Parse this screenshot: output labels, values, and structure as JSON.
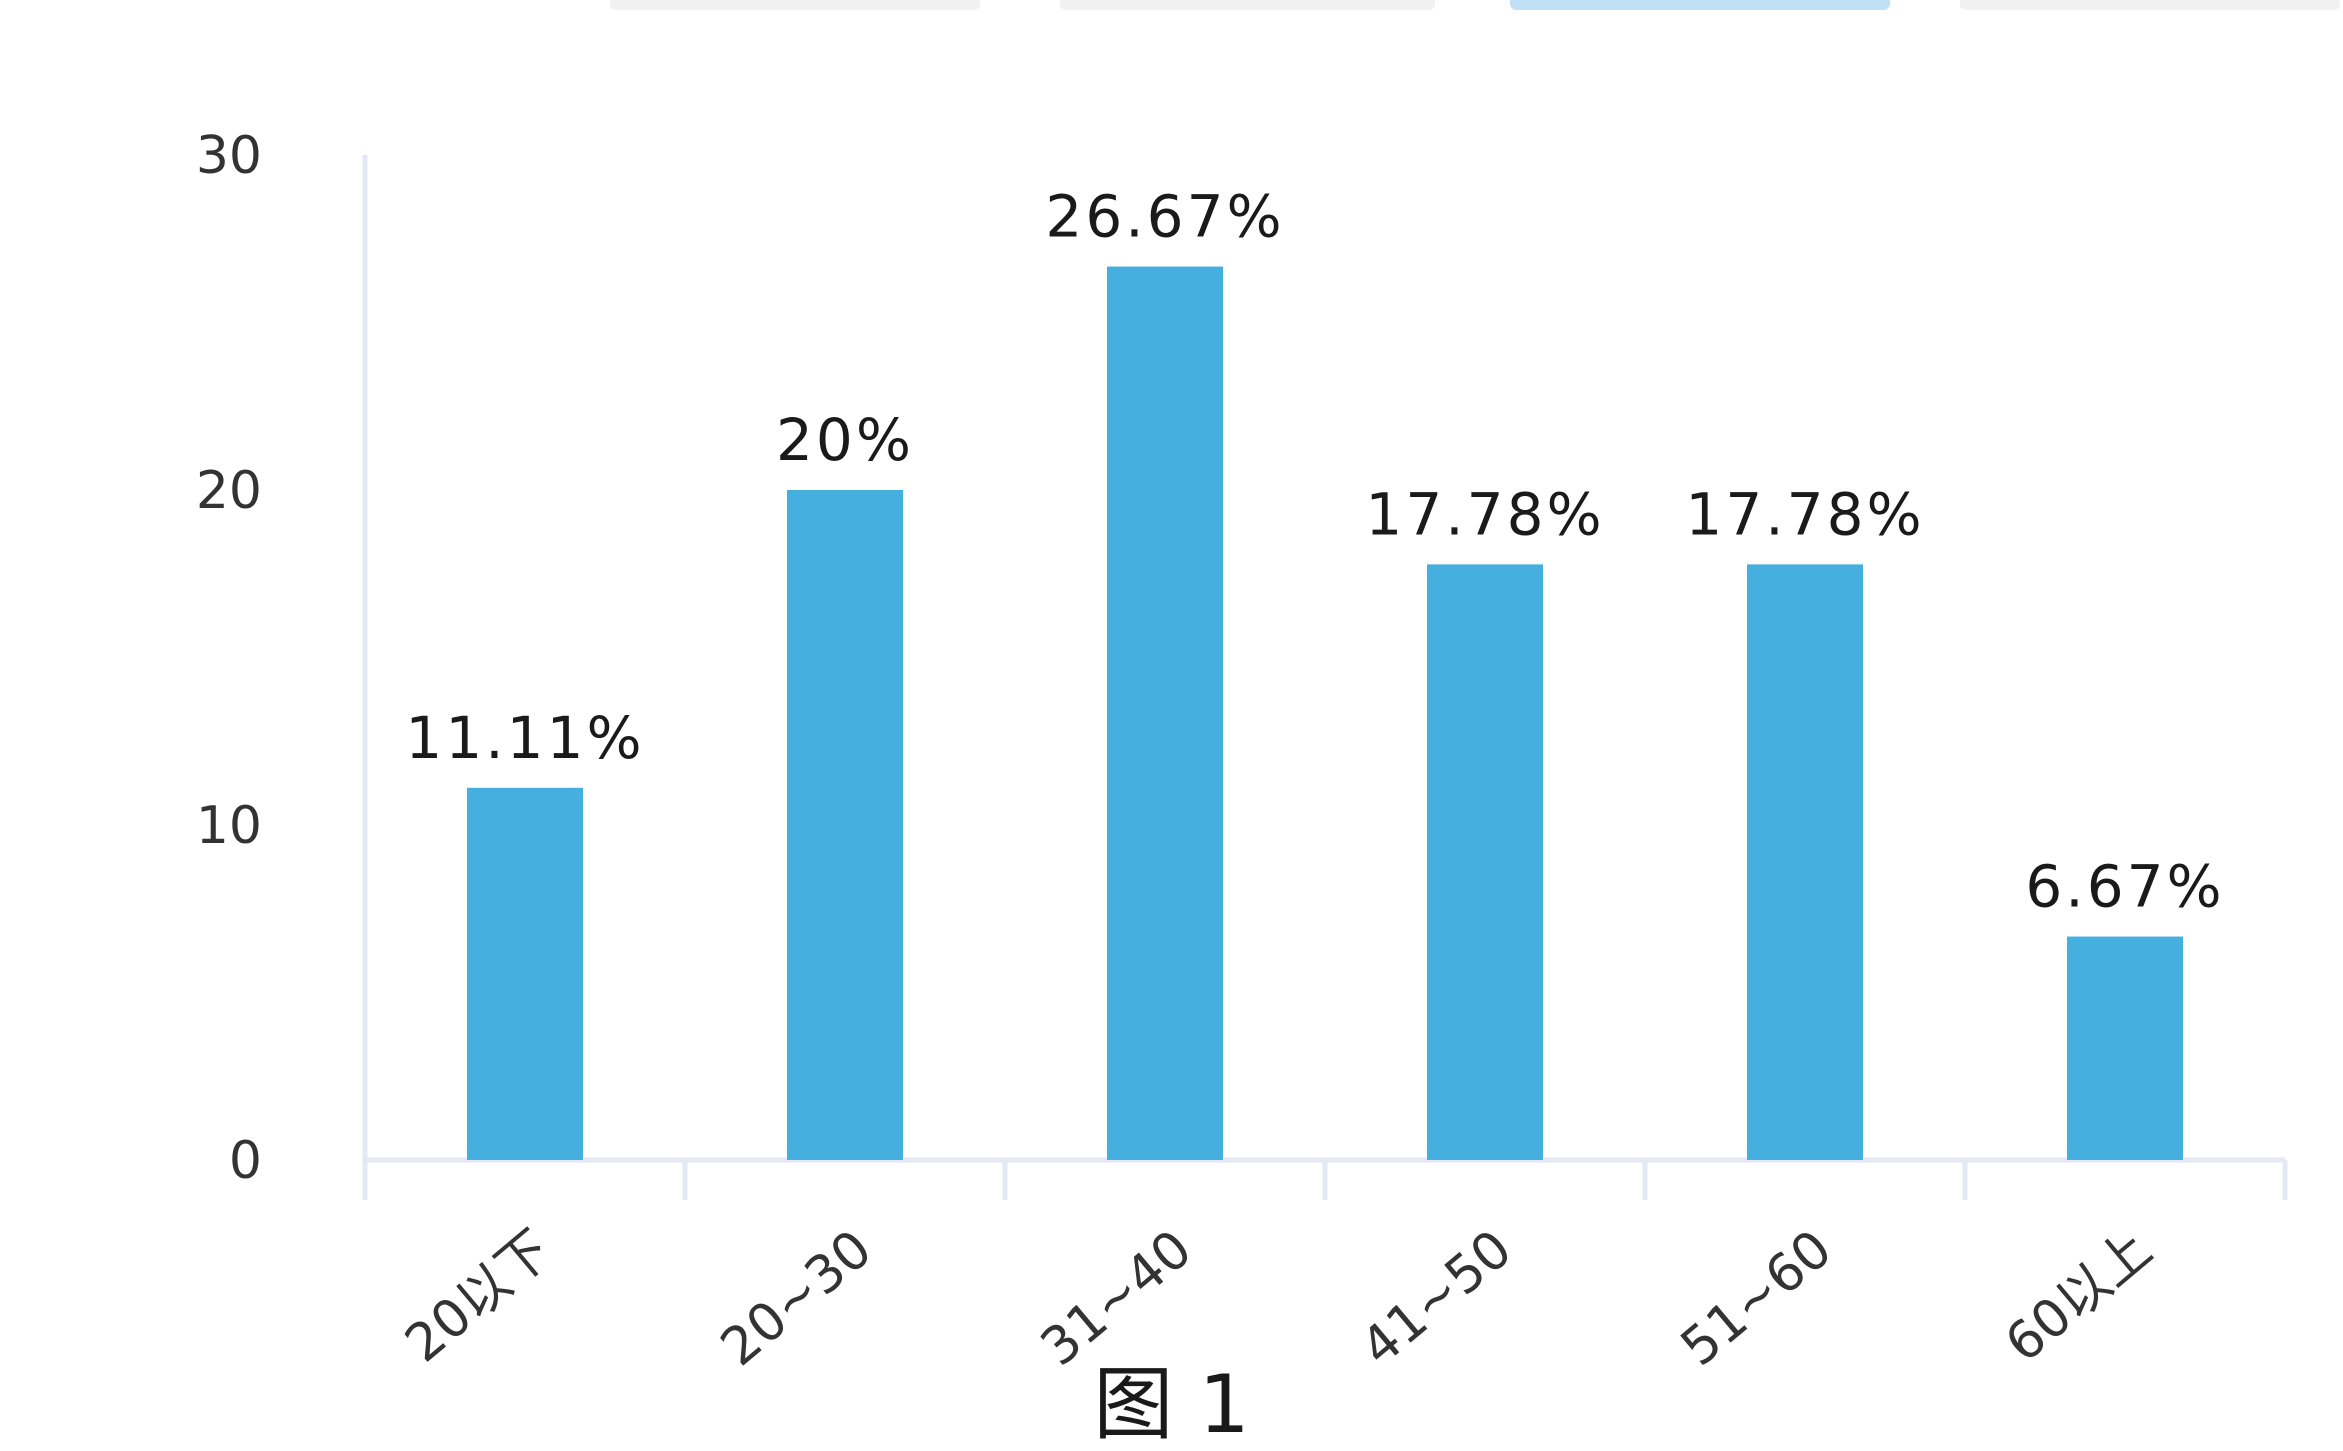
{
  "chart_data": {
    "type": "bar",
    "categories": [
      "20以下",
      "20~30",
      "31~40",
      "41~50",
      "51~60",
      "60以上"
    ],
    "values": [
      11.11,
      20,
      26.67,
      17.78,
      17.78,
      6.67
    ],
    "data_labels": [
      "11.11%",
      "20%",
      "26.67%",
      "17.78%",
      "17.78%",
      "6.67%"
    ],
    "title": "",
    "xlabel": "",
    "ylabel": "",
    "ylim": [
      0,
      30
    ],
    "yticks": [
      "0",
      "10",
      "20",
      "30"
    ],
    "grid": false,
    "bar_color": "#45b0e0",
    "axis_color": "#e3e8f4"
  },
  "caption": "图 1",
  "tab_strip_colors": [
    "#f1f1f1",
    "#f1f1f1",
    "#bfe0f5",
    "#f1f1f1"
  ]
}
